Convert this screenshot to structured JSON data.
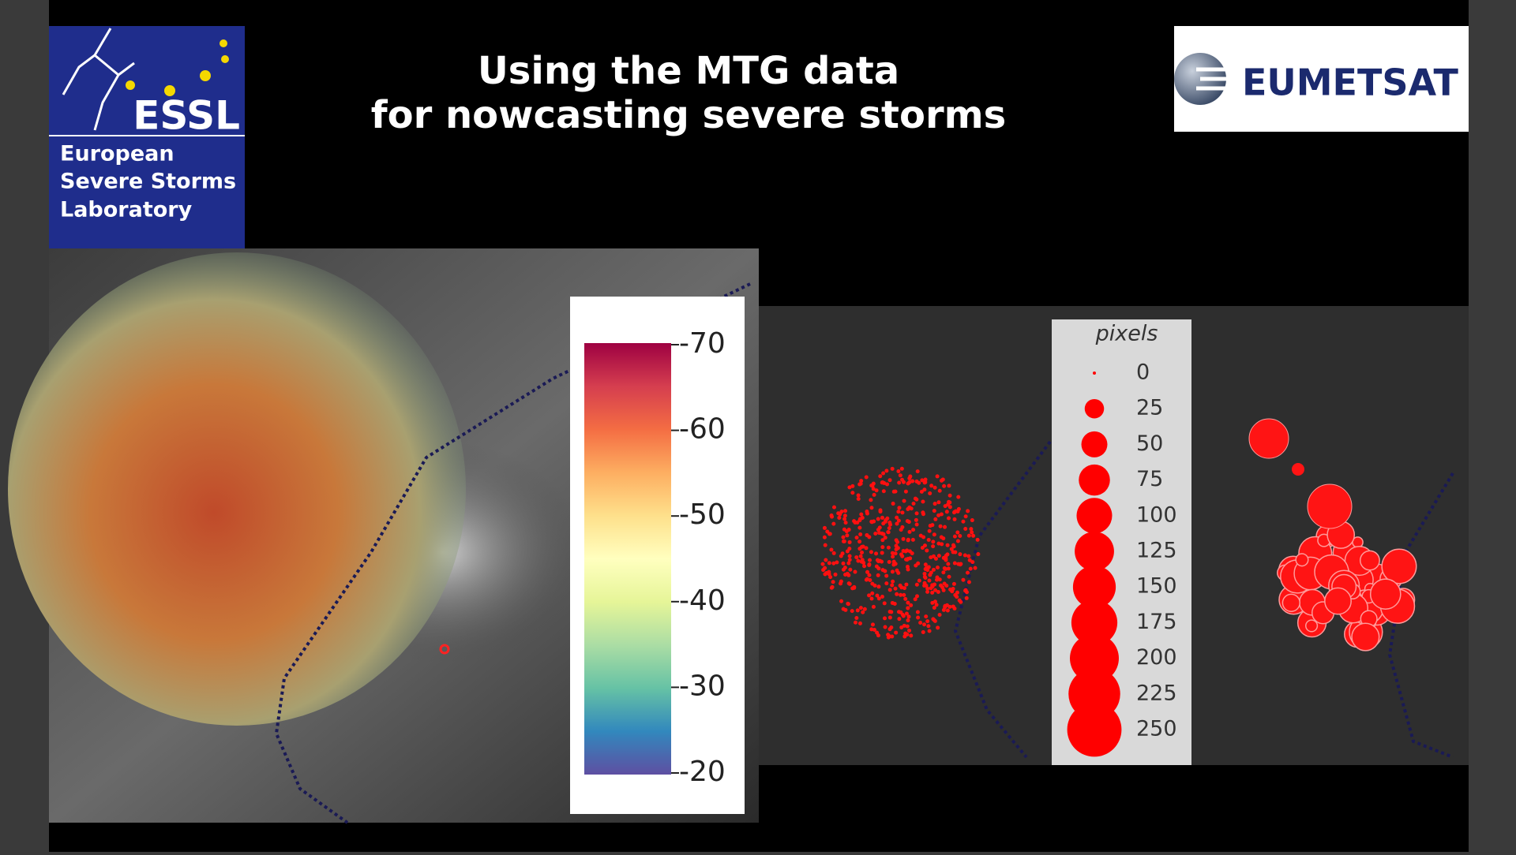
{
  "header": {
    "title_lines": [
      "Using the MTG data",
      "for nowcasting severe storms"
    ]
  },
  "logos": {
    "essl": {
      "acronym": "ESSL",
      "name_lines": [
        "European",
        "Severe Storms",
        "Laboratory"
      ]
    },
    "eumetsat": {
      "name": "EUMETSAT"
    }
  },
  "colorbar": {
    "ticks": [
      -70,
      -60,
      -50,
      -40,
      -30,
      -20
    ]
  },
  "size_legend": {
    "title": "pixels",
    "entries": [
      0,
      25,
      50,
      75,
      100,
      125,
      150,
      175,
      200,
      225,
      250
    ]
  }
}
